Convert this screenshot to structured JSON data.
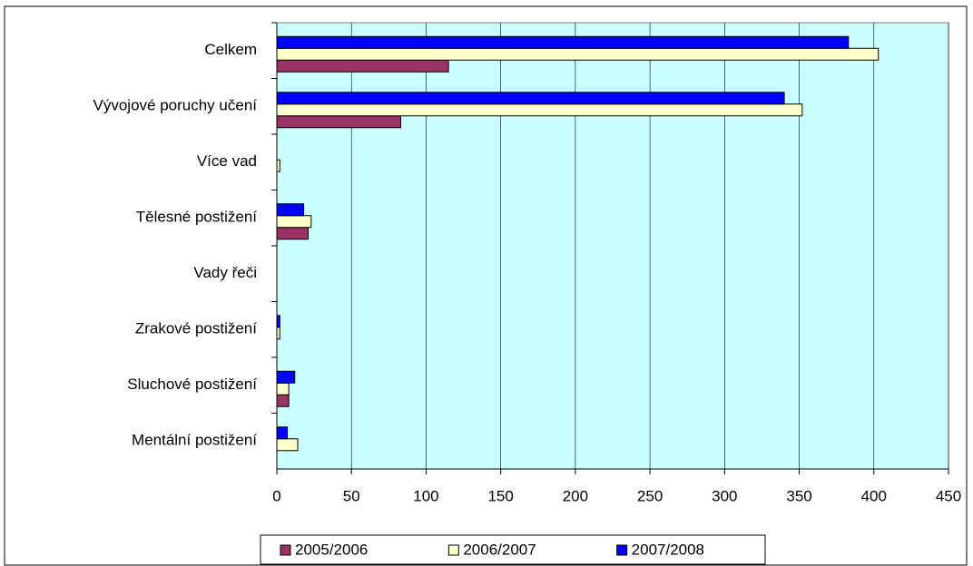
{
  "chart_data": {
    "type": "bar",
    "orientation": "horizontal",
    "categories": [
      "Celkem",
      "Vývojové poruchy učení",
      "Více vad",
      "Tělesné postižení",
      "Vady řeči",
      "Zrakové postižení",
      "Sluchové postižení",
      "Mentální postižení"
    ],
    "series": [
      {
        "name": "2005/2006",
        "color": "#993366",
        "values": [
          115,
          83,
          0,
          21,
          0,
          0,
          8,
          0
        ]
      },
      {
        "name": "2006/2007",
        "color": "#ffffcc",
        "values": [
          403,
          352,
          2,
          23,
          0,
          2,
          8,
          14
        ]
      },
      {
        "name": "2007/2008",
        "color": "#0000ff",
        "values": [
          383,
          340,
          0,
          18,
          0,
          2,
          12,
          7
        ]
      }
    ],
    "xlim": [
      0,
      450
    ],
    "xticks": [
      0,
      50,
      100,
      150,
      200,
      250,
      300,
      350,
      400,
      450
    ],
    "grid": true,
    "legend": "bottom",
    "plot_background": "#ccffff"
  }
}
